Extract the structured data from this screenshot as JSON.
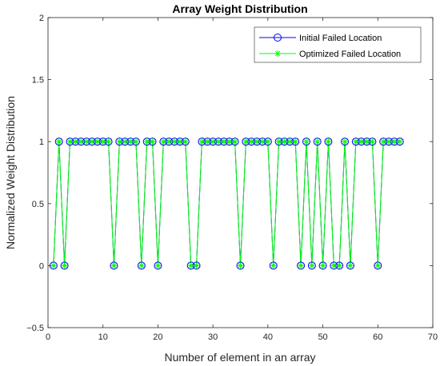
{
  "chart_data": {
    "type": "line",
    "title": "Array Weight Distribution",
    "xlabel": "Number of element in an array",
    "ylabel": "Normalized Weight Distribution",
    "xlim": [
      0,
      70
    ],
    "ylim": [
      -0.5,
      2
    ],
    "xticks": [
      0,
      10,
      20,
      30,
      40,
      50,
      60,
      70
    ],
    "yticks": [
      -0.5,
      0,
      0.5,
      1,
      1.5,
      2
    ],
    "ytick_labels": [
      "−0.5",
      "0",
      "0.5",
      "1",
      "1.5",
      "2"
    ],
    "grid": false,
    "legend_position": "top-right",
    "x": [
      1,
      2,
      3,
      4,
      5,
      6,
      7,
      8,
      9,
      10,
      11,
      12,
      13,
      14,
      15,
      16,
      17,
      18,
      19,
      20,
      21,
      22,
      23,
      24,
      25,
      26,
      27,
      28,
      29,
      30,
      31,
      32,
      33,
      34,
      35,
      36,
      37,
      38,
      39,
      40,
      41,
      42,
      43,
      44,
      45,
      46,
      47,
      48,
      49,
      50,
      51,
      52,
      53,
      54,
      55,
      56,
      57,
      58,
      59,
      60,
      61,
      62,
      63,
      64
    ],
    "series": [
      {
        "name": "Initial Failed Location",
        "color": "#0000ff",
        "marker": "circle",
        "values": [
          0,
          1,
          0,
          1,
          1,
          1,
          1,
          1,
          1,
          1,
          1,
          0,
          1,
          1,
          1,
          1,
          0,
          1,
          1,
          0,
          1,
          1,
          1,
          1,
          1,
          0,
          0,
          1,
          1,
          1,
          1,
          1,
          1,
          1,
          0,
          1,
          1,
          1,
          1,
          1,
          0,
          1,
          1,
          1,
          1,
          0,
          1,
          0,
          1,
          0,
          1,
          0,
          0,
          1,
          0,
          1,
          1,
          1,
          1,
          0,
          1,
          1,
          1,
          1
        ]
      },
      {
        "name": "Optimized Failed Location",
        "color": "#00ff00",
        "marker": "asterisk",
        "values": [
          0,
          1,
          0,
          1,
          1,
          1,
          1,
          1,
          1,
          1,
          1,
          0,
          1,
          1,
          1,
          1,
          0,
          1,
          1,
          0,
          1,
          1,
          1,
          1,
          1,
          0,
          0,
          1,
          1,
          1,
          1,
          1,
          1,
          1,
          0,
          1,
          1,
          1,
          1,
          1,
          0,
          1,
          1,
          1,
          1,
          0,
          1,
          0,
          1,
          0,
          1,
          0,
          0,
          1,
          0,
          1,
          1,
          1,
          1,
          0,
          1,
          1,
          1,
          1
        ]
      }
    ]
  }
}
